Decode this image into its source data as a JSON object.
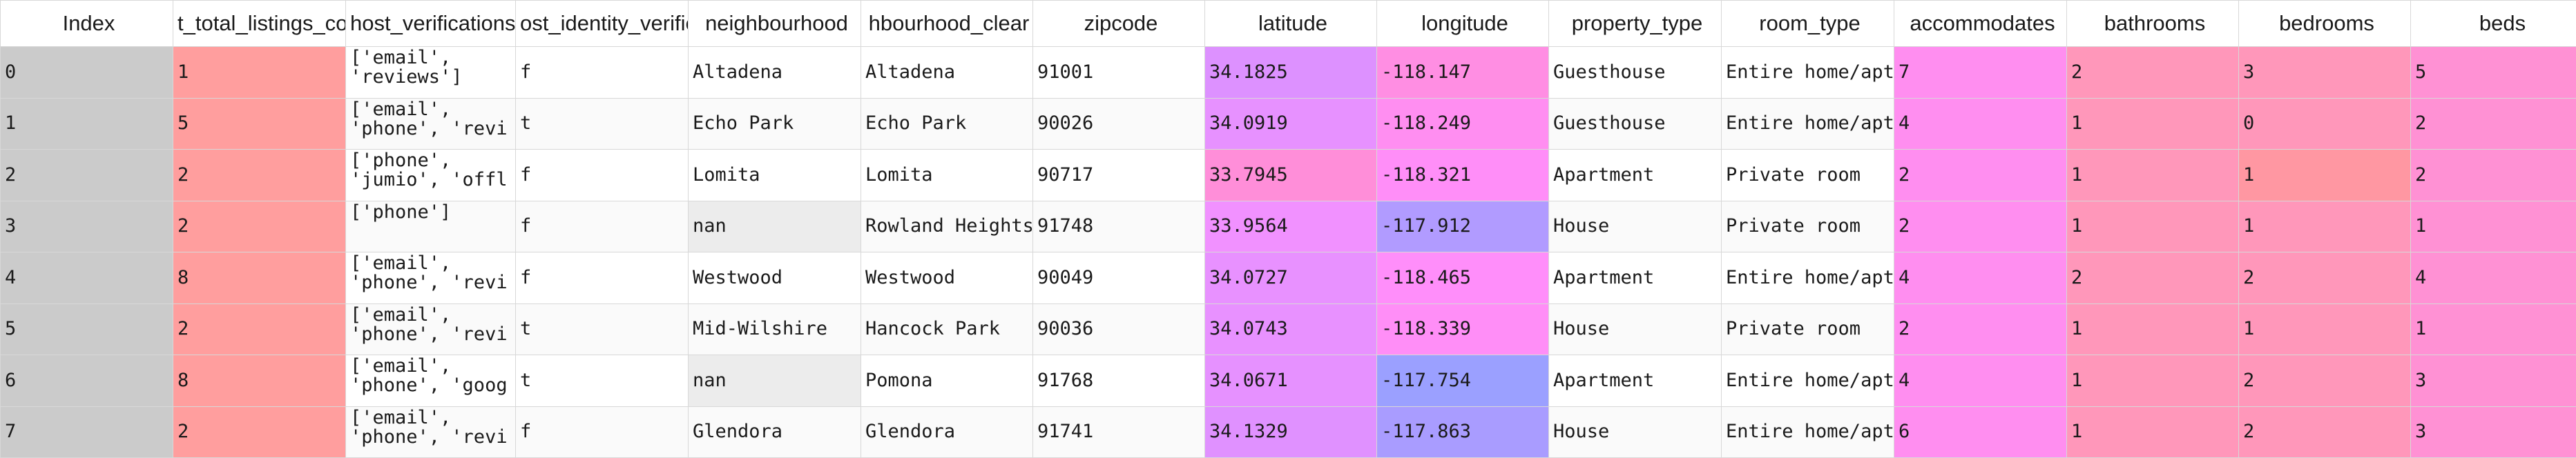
{
  "columns": [
    "Index",
    "t_total_listings_co",
    "host_verifications",
    "ost_identity_verifie",
    "neighbourhood",
    "hbourhood_clear",
    "zipcode",
    "latitude",
    "longitude",
    "property_type",
    "room_type",
    "accommodates",
    "bathrooms",
    "bedrooms",
    "beds"
  ],
  "rows": [
    {
      "index": "0",
      "total_listings": "1",
      "verifications": "['email',\n'reviews']",
      "identity": "f",
      "neighbourhood": "Altadena",
      "neighbourhood_clean": "Altadena",
      "zipcode": "91001",
      "latitude": "34.1825",
      "longitude": "-118.147",
      "property_type": "Guesthouse",
      "room_type": "Entire home/apt",
      "accommodates": "7",
      "bathrooms": "2",
      "bedrooms": "3",
      "beds": "5"
    },
    {
      "index": "1",
      "total_listings": "5",
      "verifications": "['email',\n'phone', 'revi",
      "identity": "t",
      "neighbourhood": "Echo Park",
      "neighbourhood_clean": "Echo Park",
      "zipcode": "90026",
      "latitude": "34.0919",
      "longitude": "-118.249",
      "property_type": "Guesthouse",
      "room_type": "Entire home/apt",
      "accommodates": "4",
      "bathrooms": "1",
      "bedrooms": "0",
      "beds": "2"
    },
    {
      "index": "2",
      "total_listings": "2",
      "verifications": "['phone',\n'jumio', 'offl",
      "identity": "f",
      "neighbourhood": "Lomita",
      "neighbourhood_clean": "Lomita",
      "zipcode": "90717",
      "latitude": "33.7945",
      "longitude": "-118.321",
      "property_type": "Apartment",
      "room_type": "Private room",
      "accommodates": "2",
      "bathrooms": "1",
      "bedrooms": "1",
      "beds": "2"
    },
    {
      "index": "3",
      "total_listings": "2",
      "verifications": "['phone']",
      "identity": "f",
      "neighbourhood": "nan",
      "neighbourhood_clean": "Rowland Heights",
      "zipcode": "91748",
      "latitude": "33.9564",
      "longitude": "-117.912",
      "property_type": "House",
      "room_type": "Private room",
      "accommodates": "2",
      "bathrooms": "1",
      "bedrooms": "1",
      "beds": "1"
    },
    {
      "index": "4",
      "total_listings": "8",
      "verifications": "['email',\n'phone', 'revi",
      "identity": "f",
      "neighbourhood": "Westwood",
      "neighbourhood_clean": "Westwood",
      "zipcode": "90049",
      "latitude": "34.0727",
      "longitude": "-118.465",
      "property_type": "Apartment",
      "room_type": "Entire home/apt",
      "accommodates": "4",
      "bathrooms": "2",
      "bedrooms": "2",
      "beds": "4"
    },
    {
      "index": "5",
      "total_listings": "2",
      "verifications": "['email',\n'phone', 'revi",
      "identity": "t",
      "neighbourhood": "Mid-Wilshire",
      "neighbourhood_clean": "Hancock Park",
      "zipcode": "90036",
      "latitude": "34.0743",
      "longitude": "-118.339",
      "property_type": "House",
      "room_type": "Private room",
      "accommodates": "2",
      "bathrooms": "1",
      "bedrooms": "1",
      "beds": "1"
    },
    {
      "index": "6",
      "total_listings": "8",
      "verifications": "['email',\n'phone', 'goog",
      "identity": "t",
      "neighbourhood": "nan",
      "neighbourhood_clean": "Pomona",
      "zipcode": "91768",
      "latitude": "34.0671",
      "longitude": "-117.754",
      "property_type": "Apartment",
      "room_type": "Entire home/apt",
      "accommodates": "4",
      "bathrooms": "1",
      "bedrooms": "2",
      "beds": "3"
    },
    {
      "index": "7",
      "total_listings": "2",
      "verifications": "['email',\n'phone', 'revi",
      "identity": "f",
      "neighbourhood": "Glendora",
      "neighbourhood_clean": "Glendora",
      "zipcode": "91741",
      "latitude": "34.1329",
      "longitude": "-117.863",
      "property_type": "House",
      "room_type": "Entire home/apt",
      "accommodates": "6",
      "bathrooms": "1",
      "bedrooms": "2",
      "beds": "3"
    }
  ],
  "cell_colors": {
    "total_listings": [
      "#ff9e9e",
      "#ff9e9e",
      "#ff9e9e",
      "#ff9e9e",
      "#ff9e9e",
      "#ff9e9e",
      "#ff9e9e",
      "#ff9e9e"
    ],
    "latitude": [
      "#dd91ff",
      "#e791ff",
      "#ff8ed9",
      "#f191ff",
      "#e891ff",
      "#e891ff",
      "#e691ff",
      "#e091ff"
    ],
    "longitude": [
      "#ff8ee3",
      "#ff8ef1",
      "#ff8ef8",
      "#b19bff",
      "#ff8efa",
      "#ff8ef7",
      "#9ba0ff",
      "#a99cff"
    ],
    "accommodates": [
      "#ff8ef0",
      "#ff8ef0",
      "#ff8ef0",
      "#ff8ef0",
      "#ff8ef0",
      "#ff8ef0",
      "#ff8ef0",
      "#ff8ef0"
    ],
    "bathrooms": [
      "#ff97ba",
      "#ff97ba",
      "#ff97ba",
      "#ff97ba",
      "#ff97ba",
      "#ff97ba",
      "#ff97ba",
      "#ff97ba"
    ],
    "bedrooms": [
      "#ff97ba",
      "#ff97ba",
      "#ff97a2",
      "#ff97ba",
      "#ff97ba",
      "#ff97ba",
      "#ff97ba",
      "#ff97ba"
    ],
    "beds": [
      "#ff91d4",
      "#ff91d4",
      "#ff91d4",
      "#ff91d4",
      "#ff91d4",
      "#ff91d4",
      "#ff91d4",
      "#ff91d4"
    ],
    "index": "#cbcbcb",
    "nan": "#ececec"
  }
}
